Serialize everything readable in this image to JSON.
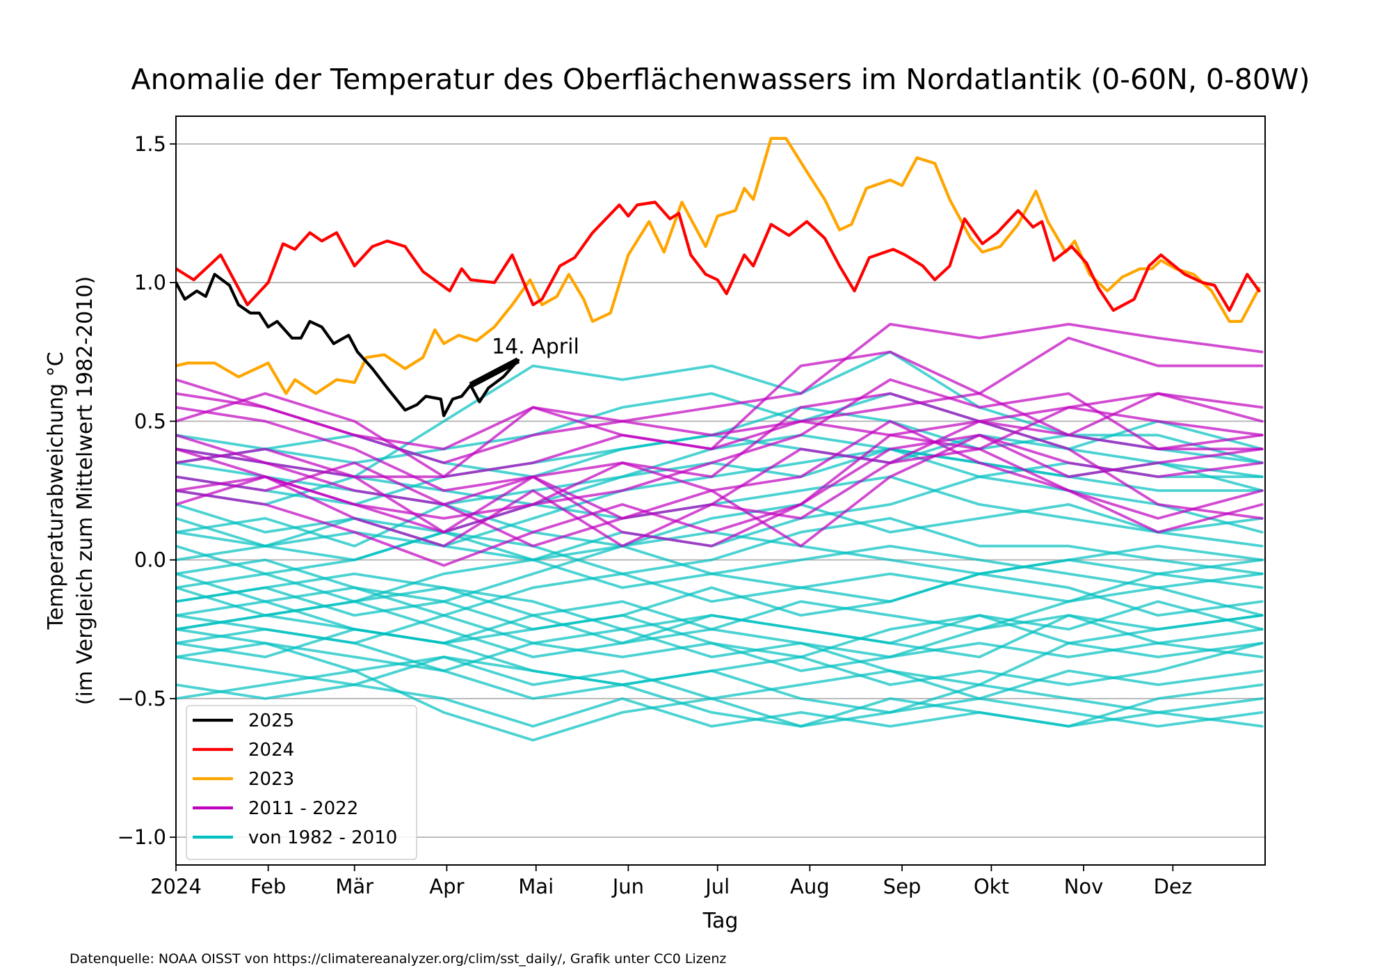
{
  "chart_data": {
    "type": "line",
    "title": "Anomalie der Temperatur des Oberflächenwassers im Nordatlantik (0-60N, 0-80W)",
    "xlabel": "Tag",
    "ylabel": [
      "Temperaturabweichung °C",
      "(im Vergleich zum Mittelwert 1982-2010)"
    ],
    "x_unit": "day of year",
    "xlim": [
      0,
      366
    ],
    "ylim": [
      -1.1,
      1.6
    ],
    "grid": "horizontal",
    "yticks": [
      -1.0,
      -0.5,
      0.0,
      0.5,
      1.0,
      1.5
    ],
    "ytick_labels": [
      "−1.0",
      "−0.5",
      "0.0",
      "0.5",
      "1.0",
      "1.5"
    ],
    "xticks": [
      0,
      31,
      60,
      91,
      121,
      152,
      182,
      213,
      244,
      274,
      305,
      335
    ],
    "xtick_labels": [
      "2024",
      "Feb",
      "Mär",
      "Apr",
      "Mai",
      "Jun",
      "Jul",
      "Aug",
      "Sep",
      "Okt",
      "Nov",
      "Dez"
    ],
    "legend_position": "lower-left",
    "legend": [
      {
        "label": "2025",
        "color": "#000000"
      },
      {
        "label": "2024",
        "color": "#ff0000"
      },
      {
        "label": "2023",
        "color": "#ffa500"
      },
      {
        "label": "2011 - 2022",
        "color": "#bf00bf"
      },
      {
        "label": "von 1982 - 2010",
        "color": "#00bfbf"
      }
    ],
    "annotation": {
      "text": "14. April",
      "series": "2025"
    },
    "footer": "Datenquelle: NOAA OISST von https://climatereanalyzer.org/clim/sst_daily/, Grafik unter CC0 Lizenz",
    "group_days": [
      0,
      30,
      60,
      90,
      120,
      150,
      180,
      210,
      240,
      270,
      300,
      330,
      365
    ],
    "group_1982_2010": {
      "color": "#00bfbf",
      "series": [
        [
          0.4,
          0.35,
          0.3,
          0.5,
          0.7,
          0.65,
          0.7,
          0.6,
          0.75,
          0.55,
          0.45,
          0.4,
          0.35
        ],
        [
          0.45,
          0.4,
          0.35,
          0.4,
          0.45,
          0.55,
          0.6,
          0.5,
          0.6,
          0.5,
          0.4,
          0.35,
          0.3
        ],
        [
          0.3,
          0.25,
          0.2,
          0.3,
          0.35,
          0.4,
          0.45,
          0.55,
          0.5,
          0.4,
          0.45,
          0.45,
          0.35
        ],
        [
          0.35,
          0.3,
          0.25,
          0.2,
          0.25,
          0.3,
          0.4,
          0.45,
          0.4,
          0.35,
          0.3,
          0.25,
          0.25
        ],
        [
          0.2,
          0.1,
          0.15,
          0.05,
          0.15,
          0.25,
          0.3,
          0.35,
          0.4,
          0.3,
          0.35,
          0.3,
          0.3
        ],
        [
          0.15,
          0.05,
          0.0,
          0.1,
          0.2,
          0.15,
          0.2,
          0.25,
          0.3,
          0.2,
          0.15,
          0.1,
          0.05
        ],
        [
          0.0,
          0.05,
          0.1,
          0.05,
          0.0,
          0.1,
          0.05,
          0.15,
          0.2,
          0.3,
          0.25,
          0.2,
          0.1
        ],
        [
          0.05,
          -0.05,
          0.0,
          0.1,
          0.05,
          -0.05,
          0.0,
          0.1,
          0.15,
          0.05,
          0.05,
          0.0,
          -0.05
        ],
        [
          -0.1,
          -0.05,
          -0.15,
          -0.05,
          0.0,
          -0.1,
          -0.05,
          0.0,
          0.05,
          0.0,
          -0.05,
          -0.1,
          -0.05
        ],
        [
          -0.05,
          -0.15,
          -0.1,
          -0.2,
          -0.1,
          -0.05,
          -0.15,
          -0.1,
          -0.05,
          -0.1,
          -0.15,
          -0.05,
          -0.1
        ],
        [
          -0.15,
          -0.1,
          -0.2,
          -0.15,
          -0.25,
          -0.2,
          -0.1,
          -0.2,
          -0.15,
          -0.05,
          -0.1,
          -0.2,
          -0.15
        ],
        [
          -0.1,
          -0.2,
          -0.15,
          -0.1,
          -0.2,
          -0.3,
          -0.25,
          -0.15,
          -0.2,
          -0.25,
          -0.15,
          -0.1,
          -0.2
        ],
        [
          -0.2,
          -0.15,
          -0.25,
          -0.3,
          -0.25,
          -0.2,
          -0.3,
          -0.35,
          -0.25,
          -0.2,
          -0.25,
          -0.15,
          -0.25
        ],
        [
          -0.25,
          -0.2,
          -0.15,
          -0.25,
          -0.35,
          -0.3,
          -0.2,
          -0.25,
          -0.3,
          -0.35,
          -0.2,
          -0.25,
          -0.2
        ],
        [
          -0.3,
          -0.25,
          -0.3,
          -0.2,
          -0.3,
          -0.35,
          -0.3,
          -0.4,
          -0.35,
          -0.3,
          -0.35,
          -0.3,
          -0.25
        ],
        [
          -0.25,
          -0.3,
          -0.35,
          -0.4,
          -0.3,
          -0.25,
          -0.35,
          -0.3,
          -0.4,
          -0.45,
          -0.3,
          -0.35,
          -0.3
        ],
        [
          -0.3,
          -0.35,
          -0.25,
          -0.3,
          -0.4,
          -0.45,
          -0.4,
          -0.35,
          -0.45,
          -0.4,
          -0.45,
          -0.4,
          -0.3
        ],
        [
          -0.35,
          -0.3,
          -0.4,
          -0.35,
          -0.45,
          -0.4,
          -0.5,
          -0.45,
          -0.4,
          -0.5,
          -0.4,
          -0.45,
          -0.4
        ],
        [
          -0.2,
          -0.25,
          -0.3,
          -0.4,
          -0.5,
          -0.45,
          -0.4,
          -0.5,
          -0.55,
          -0.45,
          -0.5,
          -0.55,
          -0.5
        ],
        [
          -0.5,
          -0.45,
          -0.4,
          -0.55,
          -0.65,
          -0.55,
          -0.5,
          -0.6,
          -0.55,
          -0.5,
          -0.55,
          -0.6,
          -0.55
        ],
        [
          -0.45,
          -0.5,
          -0.45,
          -0.5,
          -0.6,
          -0.5,
          -0.6,
          -0.55,
          -0.6,
          -0.55,
          -0.6,
          -0.55,
          -0.6
        ],
        [
          0.25,
          0.2,
          0.3,
          0.25,
          0.2,
          0.3,
          0.35,
          0.3,
          0.4,
          0.35,
          0.3,
          0.35,
          0.25
        ],
        [
          0.1,
          0.15,
          0.05,
          0.2,
          0.1,
          0.05,
          0.15,
          0.2,
          0.1,
          0.15,
          0.2,
          0.1,
          0.15
        ],
        [
          -0.05,
          0.0,
          -0.1,
          -0.15,
          -0.05,
          0.05,
          -0.05,
          -0.1,
          -0.15,
          -0.05,
          0.0,
          -0.05,
          0.0
        ],
        [
          -0.15,
          -0.1,
          -0.05,
          -0.1,
          -0.15,
          -0.25,
          -0.2,
          -0.25,
          -0.3,
          -0.2,
          -0.3,
          -0.25,
          -0.2
        ],
        [
          0.1,
          0.05,
          0.15,
          0.1,
          0.0,
          0.05,
          0.1,
          0.05,
          0.0,
          -0.05,
          0.0,
          0.05,
          0.0
        ],
        [
          -0.35,
          -0.4,
          -0.45,
          -0.35,
          -0.4,
          -0.45,
          -0.55,
          -0.6,
          -0.5,
          -0.55,
          -0.6,
          -0.5,
          -0.45
        ],
        [
          0.35,
          0.4,
          0.45,
          0.35,
          0.3,
          0.4,
          0.45,
          0.4,
          0.35,
          0.45,
          0.4,
          0.5,
          0.4
        ],
        [
          -0.25,
          -0.2,
          -0.25,
          -0.3,
          -0.2,
          -0.15,
          -0.25,
          -0.3,
          -0.35,
          -0.25,
          -0.2,
          -0.3,
          -0.35
        ]
      ]
    },
    "group_2011_2022": {
      "color": "#bf00bf",
      "series": [
        [
          0.6,
          0.55,
          0.45,
          0.35,
          0.45,
          0.5,
          0.55,
          0.6,
          0.85,
          0.8,
          0.85,
          0.8,
          0.75
        ],
        [
          0.5,
          0.6,
          0.5,
          0.3,
          0.55,
          0.45,
          0.4,
          0.7,
          0.75,
          0.6,
          0.8,
          0.7,
          0.7
        ],
        [
          0.4,
          0.3,
          0.2,
          0.15,
          0.2,
          0.35,
          0.3,
          0.55,
          0.6,
          0.5,
          0.55,
          0.6,
          0.5
        ],
        [
          0.35,
          0.4,
          0.3,
          0.1,
          0.2,
          0.25,
          0.35,
          0.45,
          0.65,
          0.55,
          0.6,
          0.4,
          0.45
        ],
        [
          0.25,
          0.2,
          0.1,
          -0.02,
          0.1,
          0.2,
          0.1,
          0.2,
          0.4,
          0.45,
          0.3,
          0.35,
          0.4
        ],
        [
          0.55,
          0.5,
          0.4,
          0.25,
          0.3,
          0.15,
          0.2,
          0.4,
          0.35,
          0.5,
          0.4,
          0.2,
          0.15
        ],
        [
          0.3,
          0.25,
          0.35,
          0.2,
          0.05,
          0.15,
          0.25,
          0.05,
          0.3,
          0.45,
          0.35,
          0.3,
          0.35
        ],
        [
          0.2,
          0.3,
          0.15,
          0.05,
          0.25,
          0.05,
          0.2,
          0.15,
          0.35,
          0.4,
          0.25,
          0.1,
          0.2
        ],
        [
          0.45,
          0.35,
          0.3,
          0.3,
          0.35,
          0.45,
          0.4,
          0.5,
          0.55,
          0.6,
          0.45,
          0.4,
          0.4
        ],
        [
          0.4,
          0.35,
          0.25,
          0.2,
          0.3,
          0.1,
          0.05,
          0.2,
          0.45,
          0.5,
          0.45,
          0.6,
          0.55
        ],
        [
          0.65,
          0.55,
          0.45,
          0.4,
          0.55,
          0.5,
          0.45,
          0.5,
          0.45,
          0.4,
          0.55,
          0.5,
          0.45
        ],
        [
          0.25,
          0.3,
          0.2,
          0.1,
          0.3,
          0.35,
          0.25,
          0.3,
          0.5,
          0.35,
          0.25,
          0.15,
          0.25
        ]
      ]
    },
    "series": [
      {
        "name": "2023",
        "color": "#ffa500",
        "x": [
          0,
          4,
          13,
          21,
          31,
          37,
          40,
          47,
          54,
          60,
          64,
          70,
          77,
          83,
          87,
          90,
          95,
          101,
          107,
          113,
          119,
          123,
          128,
          132,
          137,
          140,
          146,
          152,
          159,
          164,
          170,
          178,
          182,
          188,
          191,
          194,
          200,
          205,
          212,
          218,
          223,
          227,
          232,
          240,
          244,
          249,
          255,
          260,
          267,
          271,
          277,
          283,
          289,
          293,
          299,
          302,
          307,
          313,
          318,
          324,
          328,
          331,
          336,
          342,
          348,
          354,
          358,
          364
        ],
        "y": [
          0.7,
          0.71,
          0.71,
          0.66,
          0.71,
          0.6,
          0.65,
          0.6,
          0.65,
          0.64,
          0.73,
          0.74,
          0.69,
          0.73,
          0.83,
          0.78,
          0.81,
          0.79,
          0.84,
          0.92,
          1.01,
          0.92,
          0.95,
          1.03,
          0.94,
          0.86,
          0.89,
          1.1,
          1.22,
          1.11,
          1.29,
          1.13,
          1.24,
          1.26,
          1.34,
          1.3,
          1.52,
          1.52,
          1.4,
          1.3,
          1.19,
          1.21,
          1.34,
          1.37,
          1.35,
          1.45,
          1.43,
          1.3,
          1.16,
          1.11,
          1.13,
          1.21,
          1.33,
          1.22,
          1.11,
          1.15,
          1.03,
          0.97,
          1.02,
          1.05,
          1.05,
          1.08,
          1.05,
          1.03,
          0.97,
          0.86,
          0.86,
          0.98
        ]
      },
      {
        "name": "2024",
        "color": "#ff0000",
        "x": [
          0,
          6,
          15,
          24,
          31,
          36,
          40,
          45,
          49,
          54,
          60,
          66,
          71,
          77,
          83,
          92,
          96,
          99,
          107,
          113,
          120,
          123,
          129,
          134,
          140,
          149,
          152,
          155,
          161,
          166,
          169,
          173,
          178,
          182,
          185,
          191,
          194,
          200,
          206,
          212,
          218,
          223,
          228,
          233,
          241,
          245,
          251,
          255,
          260,
          265,
          271,
          276,
          283,
          288,
          291,
          295,
          301,
          306,
          310,
          315,
          322,
          327,
          331,
          339,
          345,
          349,
          354,
          360,
          364
        ],
        "y": [
          1.05,
          1.01,
          1.1,
          0.92,
          1.0,
          1.14,
          1.12,
          1.18,
          1.15,
          1.18,
          1.06,
          1.13,
          1.15,
          1.13,
          1.04,
          0.97,
          1.05,
          1.01,
          1.0,
          1.1,
          0.92,
          0.94,
          1.06,
          1.09,
          1.18,
          1.28,
          1.24,
          1.28,
          1.29,
          1.23,
          1.25,
          1.1,
          1.03,
          1.01,
          0.96,
          1.1,
          1.06,
          1.21,
          1.17,
          1.22,
          1.16,
          1.06,
          0.97,
          1.09,
          1.12,
          1.1,
          1.06,
          1.01,
          1.06,
          1.23,
          1.14,
          1.18,
          1.26,
          1.2,
          1.22,
          1.08,
          1.13,
          1.07,
          0.98,
          0.9,
          0.94,
          1.06,
          1.1,
          1.03,
          1.0,
          0.99,
          0.9,
          1.03,
          0.97
        ]
      },
      {
        "name": "2025",
        "color": "#000000",
        "x": [
          0,
          3,
          7,
          10,
          13,
          18,
          21,
          25,
          28,
          31,
          34,
          39,
          42,
          45,
          49,
          53,
          58,
          61,
          66,
          71,
          77,
          81,
          84,
          89,
          90,
          93,
          96,
          99,
          102,
          105,
          110,
          115
        ],
        "y": [
          1.0,
          0.94,
          0.97,
          0.95,
          1.03,
          0.99,
          0.92,
          0.89,
          0.89,
          0.84,
          0.86,
          0.8,
          0.8,
          0.86,
          0.84,
          0.78,
          0.81,
          0.75,
          0.69,
          0.62,
          0.54,
          0.56,
          0.59,
          0.58,
          0.52,
          0.58,
          0.59,
          0.63,
          0.57,
          0.62,
          0.66,
          0.72
        ]
      }
    ]
  }
}
